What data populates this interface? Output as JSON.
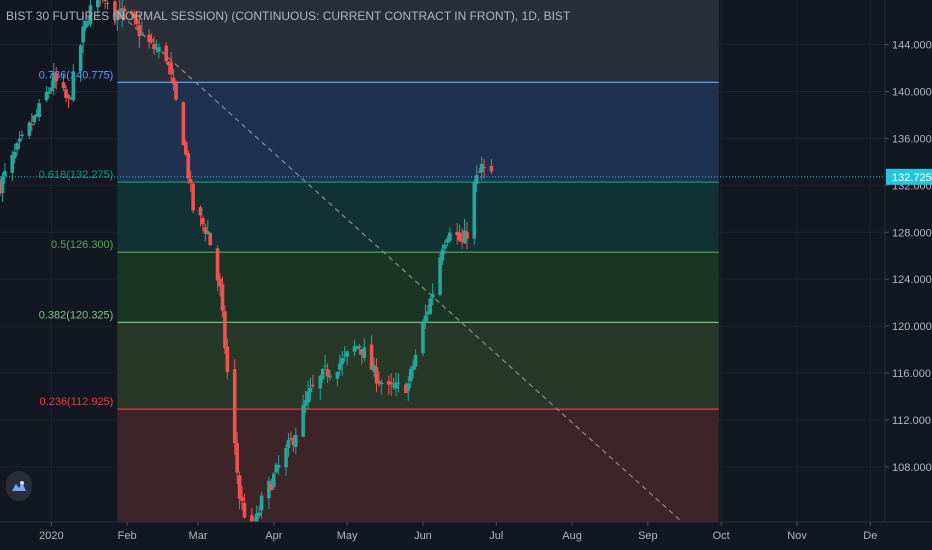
{
  "title": "BIST 30 FUTURES (NORMAL SESSION) (CONTINUOUS: CURRENT CONTRACT IN FRONT), 1D, BIST",
  "logo_icon": "tradingview-logo-icon",
  "colors": {
    "background": "#131722",
    "grid": "#1f2330",
    "axis_text": "#b2b5be",
    "candle_up": "#26a69a",
    "candle_down": "#ef5350",
    "last_price_line": "#26c6da",
    "trendline": "#8a8d96"
  },
  "chart_data": {
    "type": "candlestick",
    "title": "BIST 30 FUTURES (NORMAL SESSION) (CONTINUOUS: CURRENT CONTRACT IN FRONT), 1D, BIST",
    "x_axis": {
      "ticks": [
        "2020",
        "Feb",
        "Mar",
        "Apr",
        "May",
        "Jun",
        "Jul",
        "Aug",
        "Sep",
        "Oct",
        "Nov",
        "De"
      ],
      "tick_dates": [
        "2020-01-01",
        "2020-02-01",
        "2020-03-01",
        "2020-04-01",
        "2020-05-01",
        "2020-06-01",
        "2020-07-01",
        "2020-08-01",
        "2020-09-01",
        "2020-10-01",
        "2020-11-01",
        "2020-12-01"
      ],
      "range": [
        "2019-12-11",
        "2020-12-07"
      ]
    },
    "y_axis": {
      "ticks": [
        108,
        112,
        116,
        120,
        124,
        128,
        132,
        136,
        140,
        144
      ],
      "tick_labels": [
        "108.000",
        "112.000",
        "116.000",
        "120.000",
        "124.000",
        "128.000",
        "132.000",
        "136.000",
        "140.000",
        "144.000"
      ],
      "range": [
        103.3,
        147.8
      ],
      "side": "right"
    },
    "last_price": {
      "value": 132.725,
      "label": "132.725"
    },
    "fibonacci_retracement": {
      "start_date": "2020-01-28",
      "end_date": "2020-09-30",
      "levels": [
        {
          "ratio": 1.0,
          "price": 149.0,
          "label": "",
          "color": "#787b86"
        },
        {
          "ratio": 0.786,
          "price": 140.775,
          "label": "0.786(140.775)",
          "color": "#5b9cf6"
        },
        {
          "ratio": 0.618,
          "price": 132.275,
          "label": "0.618(132.275)",
          "color": "#089981"
        },
        {
          "ratio": 0.5,
          "price": 126.3,
          "label": "0.5(126.300)",
          "color": "#4caf50"
        },
        {
          "ratio": 0.382,
          "price": 120.325,
          "label": "0.382(120.325)",
          "color": "#81c784"
        },
        {
          "ratio": 0.236,
          "price": 112.925,
          "label": "0.236(112.925)",
          "color": "#f23645"
        },
        {
          "ratio": 0.0,
          "price": 101.0,
          "label": "",
          "color": "#787b86"
        }
      ],
      "zone_fills": [
        "#2a2e39",
        "#1f3150",
        "#123236",
        "#1a3526",
        "#273829",
        "#3d2428"
      ]
    },
    "trendline": {
      "style": "dashed",
      "start": [
        "2020-01-27",
        147.0
      ],
      "end": [
        "2020-09-15",
        103.3
      ]
    },
    "anchors": [
      [
        "2019-12-11",
        132.0
      ],
      [
        "2019-12-18",
        135.0
      ],
      [
        "2019-12-26",
        138.0
      ],
      [
        "2020-01-02",
        141.0
      ],
      [
        "2020-01-08",
        139.0
      ],
      [
        "2020-01-14",
        145.0
      ],
      [
        "2020-01-20",
        149.0
      ],
      [
        "2020-01-27",
        147.0
      ],
      [
        "2020-02-03",
        146.0
      ],
      [
        "2020-02-10",
        144.0
      ],
      [
        "2020-02-17",
        143.0
      ],
      [
        "2020-02-24",
        136.0
      ],
      [
        "2020-02-28",
        130.0
      ],
      [
        "2020-03-05",
        128.0
      ],
      [
        "2020-03-10",
        123.0
      ],
      [
        "2020-03-13",
        116.0
      ],
      [
        "2020-03-18",
        105.5
      ],
      [
        "2020-03-23",
        102.0
      ],
      [
        "2020-03-27",
        105.0
      ],
      [
        "2020-04-03",
        108.0
      ],
      [
        "2020-04-09",
        110.5
      ],
      [
        "2020-04-15",
        114.0
      ],
      [
        "2020-04-22",
        116.0
      ],
      [
        "2020-04-29",
        117.0
      ],
      [
        "2020-05-06",
        118.5
      ],
      [
        "2020-05-12",
        116.0
      ],
      [
        "2020-05-18",
        114.5
      ],
      [
        "2020-05-26",
        115.0
      ],
      [
        "2020-06-01",
        120.0
      ],
      [
        "2020-06-05",
        123.0
      ],
      [
        "2020-06-09",
        127.0
      ],
      [
        "2020-06-12",
        128.5
      ],
      [
        "2020-06-17",
        127.0
      ],
      [
        "2020-06-19",
        128.0
      ],
      [
        "2020-06-22",
        132.0
      ],
      [
        "2020-06-25",
        133.5
      ],
      [
        "2020-06-29",
        132.7
      ]
    ]
  }
}
